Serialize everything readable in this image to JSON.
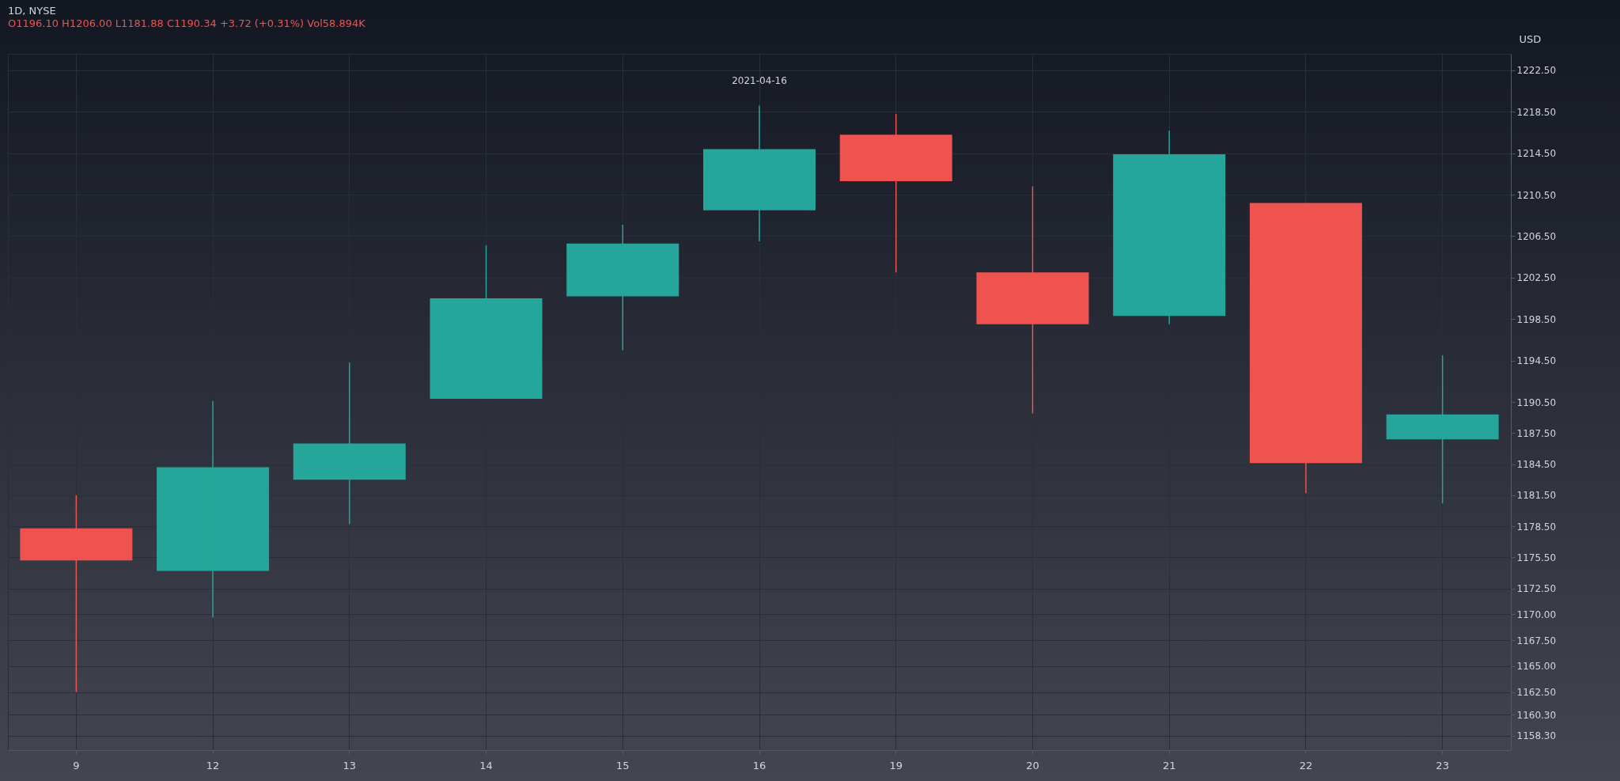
{
  "chart_data": {
    "type": "candlestick",
    "title": "1D, NYSE",
    "annotations": [
      "O1196.10 H1206.00 L1181.88 C1190.34 +3.72 (+0.31%) Vol58.894K",
      {
        "text": "2021-04-16",
        "x": "16",
        "y": 1219.1
      }
    ],
    "ylabel": "USD",
    "categories": [
      "9",
      "12",
      "13",
      "14",
      "15",
      "16",
      "19",
      "20",
      "21",
      "22",
      "23"
    ],
    "ohlc": [
      [
        1178.3,
        1181.5,
        1162.5,
        1175.2
      ],
      [
        1174.2,
        1190.6,
        1169.7,
        1184.2
      ],
      [
        1183.0,
        1194.3,
        1178.7,
        1186.5
      ],
      [
        1190.8,
        1205.6,
        1190.8,
        1200.5
      ],
      [
        1200.7,
        1207.6,
        1195.5,
        1205.8
      ],
      [
        1209.0,
        1219.1,
        1206.0,
        1214.9
      ],
      [
        1216.3,
        1218.3,
        1203.0,
        1211.8
      ],
      [
        1203.0,
        1211.3,
        1189.4,
        1198.0
      ],
      [
        1198.8,
        1216.7,
        1198.0,
        1214.4
      ],
      [
        1209.7,
        1209.7,
        1181.7,
        1184.6
      ],
      [
        1186.9,
        1195.0,
        1180.7,
        1189.3
      ]
    ],
    "colors": [
      "#ef5350",
      "#26a69a",
      "#26a69a",
      "#26a69a",
      "#26a69a",
      "#26a69a",
      "#ef5350",
      "#ef5350",
      "#26a69a",
      "#ef5350",
      "#26a69a"
    ],
    "ylim": [
      1156.9,
      1224.1
    ],
    "yticks": [
      {
        "value": 1158.3,
        "label": "1158.30"
      },
      {
        "value": 1160.3,
        "label": "1160.30"
      },
      {
        "value": 1162.5,
        "label": "1162.50"
      },
      {
        "value": 1165,
        "label": "1165.00"
      },
      {
        "value": 1167.5,
        "label": "1167.50"
      },
      {
        "value": 1170,
        "label": "1170.00"
      },
      {
        "value": 1172.5,
        "label": "1172.50"
      },
      {
        "value": 1175.5,
        "label": "1175.50"
      },
      {
        "value": 1178.5,
        "label": "1178.50"
      },
      {
        "value": 1181.5,
        "label": "1181.50"
      },
      {
        "value": 1184.5,
        "label": "1184.50"
      },
      {
        "value": 1187.5,
        "label": "1187.50"
      },
      {
        "value": 1190.5,
        "label": "1190.50"
      },
      {
        "value": 1194.5,
        "label": "1194.50"
      },
      {
        "value": 1198.5,
        "label": "1198.50"
      },
      {
        "value": 1202.5,
        "label": "1202.50"
      },
      {
        "value": 1206.5,
        "label": "1206.50"
      },
      {
        "value": 1210.5,
        "label": "1210.50"
      },
      {
        "value": 1214.5,
        "label": "1214.50"
      },
      {
        "value": 1218.5,
        "label": "1218.50"
      },
      {
        "value": 1222.5,
        "label": "1222.50"
      }
    ],
    "grid": true
  }
}
